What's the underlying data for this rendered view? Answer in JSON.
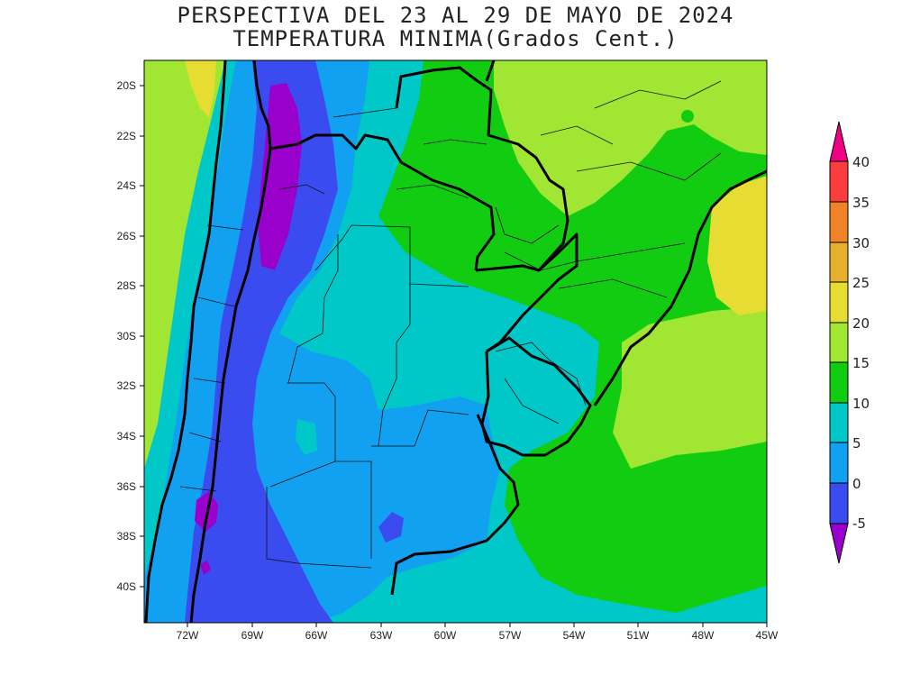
{
  "title": {
    "line1": "PERSPECTIVA DEL 23 AL 29 DE MAYO DE 2024",
    "line2": "TEMPERATURA MINIMA(Grados Cent.)"
  },
  "axes": {
    "lat_labels": [
      "20S",
      "22S",
      "24S",
      "26S",
      "28S",
      "30S",
      "32S",
      "34S",
      "36S",
      "38S",
      "40S"
    ],
    "lon_labels": [
      "72W",
      "69W",
      "66W",
      "63W",
      "60W",
      "57W",
      "54W",
      "51W",
      "48W",
      "45W"
    ]
  },
  "colorbar": {
    "labels": [
      "40",
      "35",
      "30",
      "25",
      "20",
      "15",
      "10",
      "5",
      "0",
      "-5"
    ],
    "levels": [
      {
        "range": "<-5",
        "color": "#9900cc"
      },
      {
        "range": "-5 to 0",
        "color": "#3a4cf0"
      },
      {
        "range": "0 to 5",
        "color": "#12a0f0"
      },
      {
        "range": "5 to 10",
        "color": "#00c8c8"
      },
      {
        "range": "10 to 15",
        "color": "#11cc11"
      },
      {
        "range": "15 to 20",
        "color": "#a0e632"
      },
      {
        "range": "20 to 25",
        "color": "#e6dc32"
      },
      {
        "range": "25 to 30",
        "color": "#e6af2d"
      },
      {
        "range": "30 to 35",
        "color": "#f08228"
      },
      {
        "range": "35 to 40",
        "color": "#fa3c3c"
      },
      {
        "range": ">40",
        "color": "#f00082"
      }
    ]
  }
}
